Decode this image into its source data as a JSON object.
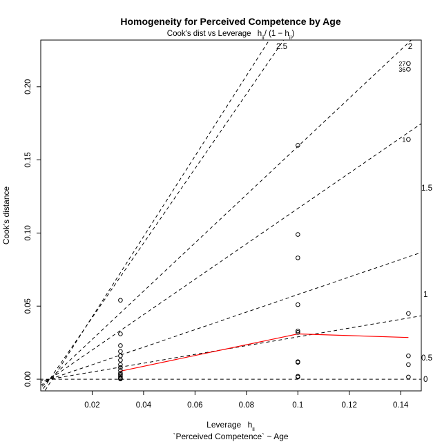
{
  "chart_data": {
    "type": "scatter",
    "title": "Homogeneity for Perceived Competence by Age",
    "subtitle_prefix": "Cook's dist vs Leverage",
    "subtitle_formula": "h_ii / (1 - h_ii)",
    "xlabel": "Leverage",
    "xlabel_var": "h_ii",
    "xlabel_formula": "`Perceived Competence` ~ Age",
    "ylabel": "Cook's distance",
    "xlim": [
      0.0,
      0.148
    ],
    "ylim": [
      -0.008,
      0.232
    ],
    "x_ticks": [
      "0.02",
      "0.04",
      "0.06",
      "0.08",
      "0.1",
      "0.12",
      "0.14"
    ],
    "x_tick_values": [
      0.02,
      0.04,
      0.06,
      0.08,
      0.1,
      0.12,
      0.14
    ],
    "y_ticks": [
      "0.00",
      "0.05",
      "0.10",
      "0.15",
      "0.20"
    ],
    "y_tick_values": [
      0.0,
      0.05,
      0.1,
      0.15,
      0.2
    ],
    "contour_labels": [
      "0",
      "0.5",
      "1",
      "1.5",
      "2",
      "2.5"
    ],
    "contour_values": [
      0,
      0.5,
      1,
      1.5,
      2,
      2.5
    ],
    "points": [
      {
        "x": 0.031,
        "y": 0.054
      },
      {
        "x": 0.031,
        "y": 0.031
      },
      {
        "x": 0.031,
        "y": 0.023
      },
      {
        "x": 0.031,
        "y": 0.019
      },
      {
        "x": 0.031,
        "y": 0.016
      },
      {
        "x": 0.031,
        "y": 0.013
      },
      {
        "x": 0.031,
        "y": 0.01
      },
      {
        "x": 0.031,
        "y": 0.008
      },
      {
        "x": 0.031,
        "y": 0.006
      },
      {
        "x": 0.031,
        "y": 0.004
      },
      {
        "x": 0.031,
        "y": 0.003
      },
      {
        "x": 0.031,
        "y": 0.002
      },
      {
        "x": 0.031,
        "y": 0.001
      },
      {
        "x": 0.031,
        "y": 0.0005
      },
      {
        "x": 0.031,
        "y": 0.0002
      },
      {
        "x": 0.1,
        "y": 0.16
      },
      {
        "x": 0.1,
        "y": 0.099
      },
      {
        "x": 0.1,
        "y": 0.083
      },
      {
        "x": 0.1,
        "y": 0.051
      },
      {
        "x": 0.1,
        "y": 0.033
      },
      {
        "x": 0.1,
        "y": 0.032
      },
      {
        "x": 0.1,
        "y": 0.012
      },
      {
        "x": 0.1,
        "y": 0.0115
      },
      {
        "x": 0.1,
        "y": 0.002
      },
      {
        "x": 0.1,
        "y": 0.0015
      },
      {
        "x": 0.143,
        "y": 0.216
      },
      {
        "x": 0.143,
        "y": 0.212
      },
      {
        "x": 0.143,
        "y": 0.164
      },
      {
        "x": 0.143,
        "y": 0.045
      },
      {
        "x": 0.143,
        "y": 0.016
      },
      {
        "x": 0.143,
        "y": 0.01
      },
      {
        "x": 0.143,
        "y": 0.0015
      }
    ],
    "point_labels": [
      {
        "label": "27",
        "x": 0.143,
        "y": 0.216
      },
      {
        "label": "36",
        "x": 0.143,
        "y": 0.212
      },
      {
        "label": "1",
        "x": 0.143,
        "y": 0.164
      }
    ],
    "smooth_line": [
      {
        "x": 0.031,
        "y": 0.0055
      },
      {
        "x": 0.1,
        "y": 0.031
      },
      {
        "x": 0.143,
        "y": 0.0285
      }
    ],
    "colors": {
      "points": "#000000",
      "smooth": "#ff0000",
      "contours": "#000000",
      "axes": "#000000"
    }
  }
}
